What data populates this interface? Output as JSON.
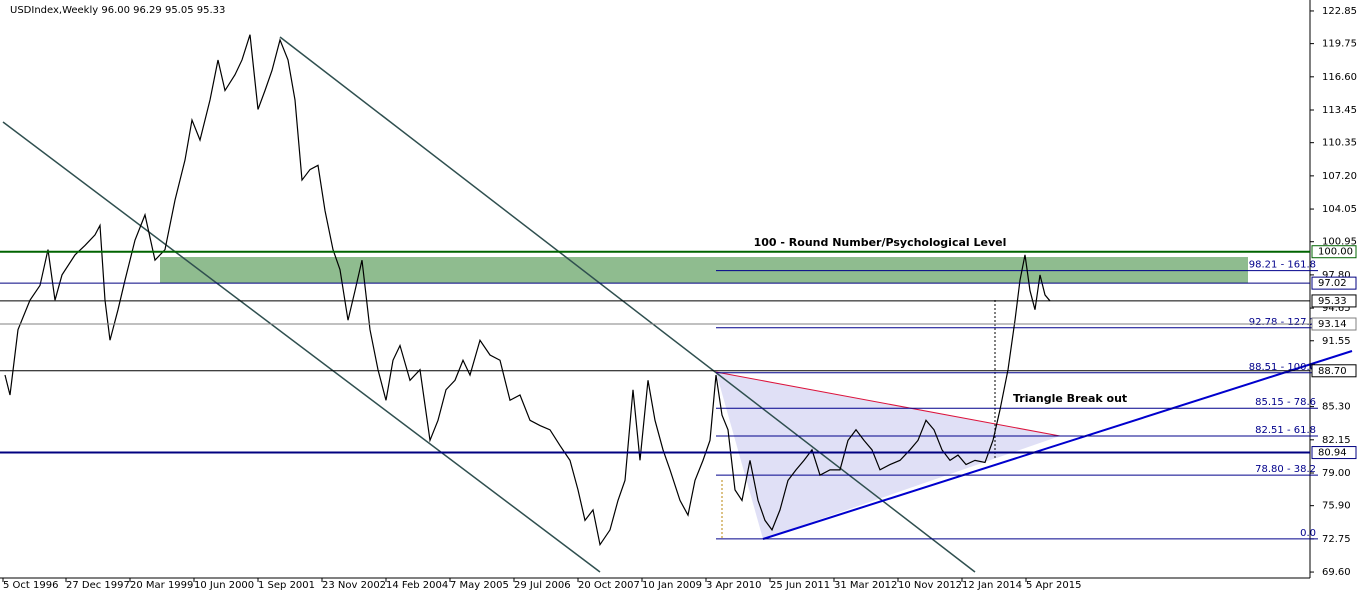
{
  "header": {
    "title": "USDIndex,Weekly  96.00 96.29 95.05 95.33"
  },
  "chart_data": {
    "type": "line",
    "color": "#000000",
    "xlim": [
      -3,
      1307
    ],
    "ylim": [
      69.13,
      123.7
    ],
    "xticks": [
      {
        "value": 0,
        "label": "5 Oct 1996"
      },
      {
        "value": 63,
        "label": "27 Dec 1997"
      },
      {
        "value": 127,
        "label": "20 Mar 1999"
      },
      {
        "value": 191,
        "label": "10 Jun 2000"
      },
      {
        "value": 255,
        "label": "1 Sep 2001"
      },
      {
        "value": 319,
        "label": "23 Nov 2002"
      },
      {
        "value": 383,
        "label": "14 Feb 2004"
      },
      {
        "value": 447,
        "label": "7 May 2005"
      },
      {
        "value": 511,
        "label": "29 Jul 2006"
      },
      {
        "value": 575,
        "label": "20 Oct 2007"
      },
      {
        "value": 639,
        "label": "10 Jan 2009"
      },
      {
        "value": 703,
        "label": "3 Apr 2010"
      },
      {
        "value": 767,
        "label": "25 Jun 2011"
      },
      {
        "value": 831,
        "label": "31 Mar 2012"
      },
      {
        "value": 895,
        "label": "10 Nov 2012"
      },
      {
        "value": 959,
        "label": "12 Jan 2014"
      },
      {
        "value": 1023,
        "label": "5 Apr 2015"
      }
    ],
    "yticks": [
      122.85,
      119.75,
      {
        "value": 116.6,
        "label": "116.60"
      },
      113.45,
      110.35,
      {
        "value": 107.2,
        "label": "107.20"
      },
      104.05,
      100.95,
      {
        "value": 97.8,
        "label": "97.80"
      },
      94.65,
      91.55,
      {
        "value": 85.3,
        "label": "85.30"
      },
      82.15,
      {
        "value": 79,
        "label": "79.00"
      },
      {
        "value": 75.9,
        "label": "75.90"
      },
      72.75,
      {
        "value": 69.6,
        "label": "69.60"
      }
    ],
    "x": [
      2,
      7,
      15,
      27,
      37,
      45,
      52,
      59,
      72,
      82,
      92,
      97,
      102,
      107,
      115,
      122,
      132,
      142,
      152,
      162,
      172,
      182,
      189,
      197,
      207,
      215,
      222,
      232,
      239,
      247,
      255,
      262,
      269,
      277,
      285,
      292,
      299,
      307,
      315,
      322,
      330,
      337,
      345,
      352,
      359,
      367,
      375,
      383,
      390,
      397,
      407,
      417,
      427,
      435,
      443,
      452,
      460,
      467,
      477,
      487,
      497,
      507,
      517,
      527,
      537,
      547,
      557,
      567,
      575,
      582,
      590,
      597,
      607,
      615,
      622,
      630,
      637,
      645,
      652,
      660,
      667,
      677,
      685,
      692,
      700,
      707,
      713,
      719,
      725,
      732,
      739,
      747,
      755,
      762,
      769,
      777,
      785,
      793,
      801,
      809,
      817,
      827,
      837,
      845,
      853,
      861,
      869,
      877,
      887,
      897,
      907,
      915,
      923,
      931,
      939,
      947,
      955,
      963,
      972,
      982,
      990,
      997,
      1005,
      1012,
      1017,
      1022,
      1027,
      1032,
      1037,
      1042,
      1047
    ],
    "values": [
      88.3,
      86.4,
      92.6,
      95.4,
      96.8,
      100.2,
      95.4,
      97.8,
      99.7,
      100.6,
      101.6,
      102.5,
      95.4,
      91.6,
      94.5,
      97.3,
      101.1,
      103.5,
      99.2,
      100.2,
      104.9,
      108.7,
      112.5,
      110.6,
      114.4,
      118.2,
      115.3,
      116.8,
      118.2,
      120.6,
      113.5,
      115.3,
      117.2,
      120.1,
      118.2,
      114.4,
      106.8,
      107.8,
      108.2,
      103.9,
      100.2,
      98.3,
      93.5,
      96.3,
      99.2,
      92.6,
      88.8,
      85.9,
      89.7,
      91.1,
      87.8,
      88.8,
      82.1,
      84.0,
      86.9,
      87.8,
      89.7,
      88.3,
      91.6,
      90.2,
      89.7,
      85.9,
      86.4,
      84.0,
      83.5,
      83.1,
      81.6,
      80.2,
      77.4,
      74.5,
      75.5,
      72.2,
      73.6,
      76.4,
      78.3,
      86.9,
      80.2,
      87.8,
      84.0,
      81.2,
      79.3,
      76.4,
      75.0,
      78.3,
      80.2,
      82.1,
      88.3,
      84.5,
      83.1,
      77.4,
      76.4,
      80.2,
      76.4,
      74.5,
      73.6,
      75.5,
      78.3,
      79.3,
      80.2,
      81.2,
      78.8,
      79.3,
      79.3,
      82.1,
      83.1,
      82.1,
      81.2,
      79.3,
      79.8,
      80.2,
      81.2,
      82.1,
      84.0,
      83.1,
      81.2,
      80.2,
      80.7,
      79.8,
      80.2,
      80.0,
      82.1,
      85.0,
      88.8,
      93.5,
      97.3,
      99.7,
      96.3,
      94.5,
      97.8,
      95.9,
      95.33
    ],
    "levels": [
      {
        "value": 100,
        "label": "100.00",
        "color": "#006400"
      },
      {
        "value": 97.02,
        "label": "97.02",
        "color": "#000080"
      },
      {
        "value": 95.33,
        "label": "95.33",
        "color": "#000000"
      },
      {
        "value": 93.14,
        "label": "93.14",
        "color": "#808080"
      },
      {
        "value": 88.7,
        "label": "88.70",
        "color": "#000000"
      },
      {
        "value": 80.94,
        "label": "80.94",
        "color": "#000080"
      }
    ],
    "fib_levels": [
      {
        "value": 98.21,
        "label": "98.21 - 161.8"
      },
      {
        "value": 92.78,
        "label": "92.78 - 127.2"
      },
      {
        "value": 88.51,
        "label": "88.51 - 100.0"
      },
      {
        "value": 85.15,
        "label": "85.15 - 78.6"
      },
      {
        "value": 82.51,
        "label": "82.51 - 61.8"
      },
      {
        "value": 78.8,
        "label": "78.80 - 38.2"
      },
      {
        "value": 72.75,
        "label": "0.0"
      }
    ],
    "annotations": [
      "100 - Round Number/Psychological Level",
      "Triangle Break out"
    ]
  }
}
